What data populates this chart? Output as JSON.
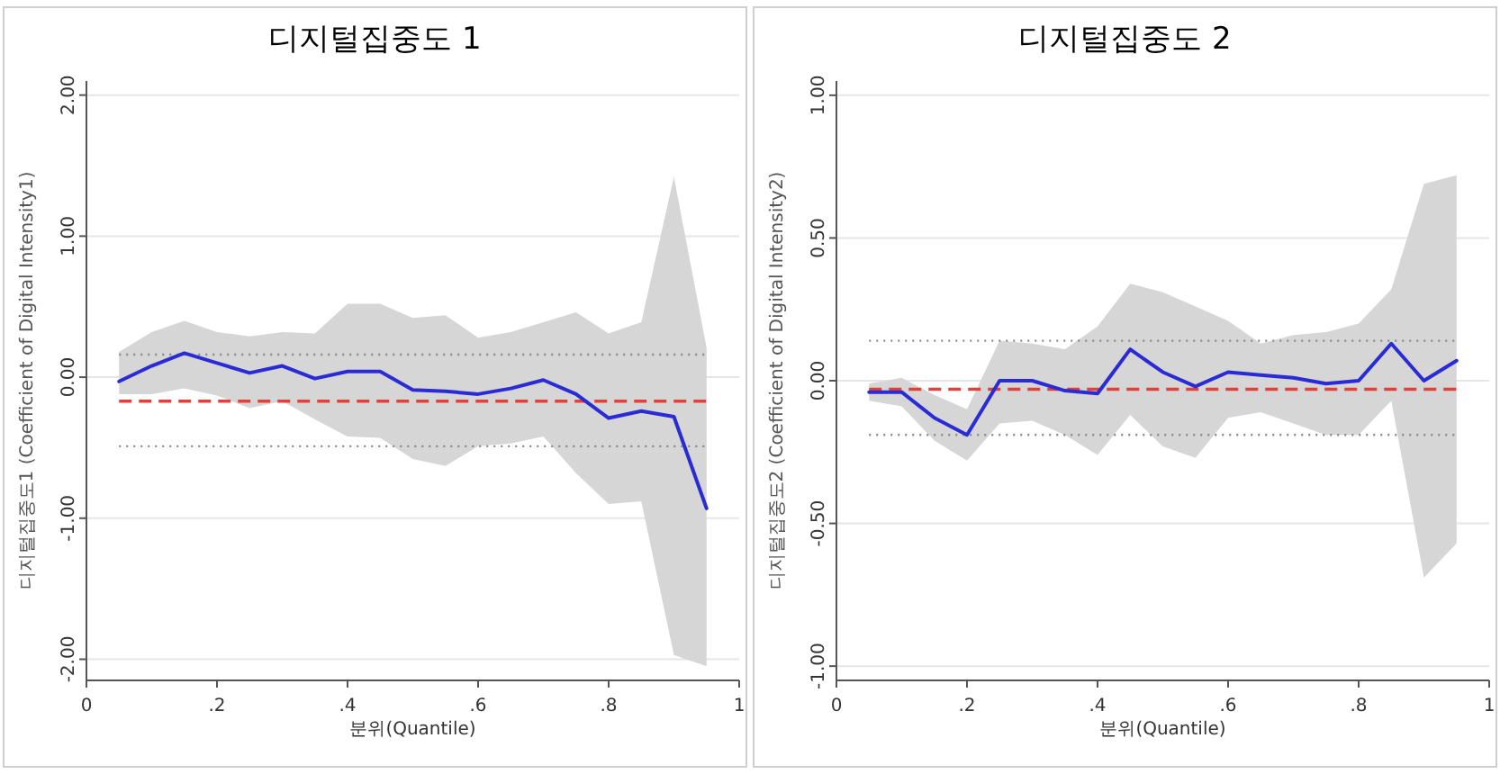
{
  "chart_data": [
    {
      "type": "line",
      "title": "디지털집중도 1",
      "xlabel": "분위(Quantile)",
      "ylabel": "디지털집중도1 (Coefficient of Digital Intensity1)",
      "x": [
        0.05,
        0.1,
        0.15,
        0.2,
        0.25,
        0.3,
        0.35,
        0.4,
        0.45,
        0.5,
        0.55,
        0.6,
        0.65,
        0.7,
        0.75,
        0.8,
        0.85,
        0.9,
        0.95
      ],
      "series": [
        {
          "color": "#2b2bd6",
          "values": [
            -0.03,
            0.08,
            0.17,
            0.1,
            0.03,
            0.08,
            -0.01,
            0.04,
            0.04,
            -0.09,
            -0.1,
            -0.12,
            -0.08,
            -0.02,
            -0.12,
            -0.29,
            -0.24,
            -0.28,
            -0.93
          ],
          "upper": [
            0.18,
            0.32,
            0.4,
            0.32,
            0.29,
            0.32,
            0.31,
            0.52,
            0.52,
            0.42,
            0.44,
            0.28,
            0.32,
            0.39,
            0.46,
            0.31,
            0.39,
            1.42,
            0.21
          ],
          "lower": [
            -0.12,
            -0.12,
            -0.08,
            -0.13,
            -0.22,
            -0.17,
            -0.3,
            -0.42,
            -0.43,
            -0.58,
            -0.63,
            -0.49,
            -0.47,
            -0.42,
            -0.68,
            -0.9,
            -0.88,
            -1.97,
            -2.05
          ]
        }
      ],
      "ref_lines": [
        {
          "axis": "y",
          "value": -0.17,
          "color": "#e0413a",
          "line_style": "dashed"
        },
        {
          "axis": "y",
          "value": 0.16,
          "color": "#888888",
          "line_style": "dotted"
        },
        {
          "axis": "y",
          "value": -0.49,
          "color": "#888888",
          "line_style": "dotted"
        }
      ],
      "xlim": [
        0,
        1
      ],
      "xticks": [
        {
          "value": 0,
          "label": "0"
        },
        {
          "value": 0.2,
          "label": ".2"
        },
        {
          "value": 0.4,
          "label": ".4"
        },
        {
          "value": 0.6,
          "label": ".6"
        },
        {
          "value": 0.8,
          "label": ".8"
        },
        {
          "value": 1,
          "label": "1"
        }
      ],
      "ylim": [
        -2.15,
        2.1
      ],
      "yticks": [
        {
          "value": 2,
          "label": "2.00"
        },
        {
          "value": 1,
          "label": "1.00"
        },
        {
          "value": 0,
          "label": "0.00"
        },
        {
          "value": -1,
          "label": "-1.00"
        },
        {
          "value": -2,
          "label": "-2.00"
        }
      ],
      "grid": "y"
    },
    {
      "type": "line",
      "title": "디지털집중도 2",
      "xlabel": "분위(Quantile)",
      "ylabel": "디지털집중도2 (Coefficient of Digital Intensity2)",
      "x": [
        0.05,
        0.1,
        0.15,
        0.2,
        0.25,
        0.3,
        0.35,
        0.4,
        0.45,
        0.5,
        0.55,
        0.6,
        0.65,
        0.7,
        0.75,
        0.8,
        0.85,
        0.9,
        0.95
      ],
      "series": [
        {
          "color": "#2b2bd6",
          "values": [
            -0.04,
            -0.04,
            -0.13,
            -0.19,
            0.0,
            0.0,
            -0.035,
            -0.045,
            0.11,
            0.03,
            -0.02,
            0.03,
            0.02,
            0.01,
            -0.01,
            0.0,
            0.13,
            0.0,
            0.07
          ],
          "upper": [
            -0.01,
            0.01,
            -0.05,
            -0.1,
            0.14,
            0.13,
            0.11,
            0.19,
            0.34,
            0.31,
            0.26,
            0.21,
            0.13,
            0.16,
            0.17,
            0.2,
            0.32,
            0.69,
            0.72
          ],
          "lower": [
            -0.07,
            -0.09,
            -0.21,
            -0.28,
            -0.15,
            -0.14,
            -0.19,
            -0.26,
            -0.12,
            -0.23,
            -0.27,
            -0.13,
            -0.11,
            -0.15,
            -0.19,
            -0.19,
            -0.07,
            -0.69,
            -0.57
          ]
        }
      ],
      "ref_lines": [
        {
          "axis": "y",
          "value": -0.03,
          "color": "#e0413a",
          "line_style": "dashed"
        },
        {
          "axis": "y",
          "value": 0.14,
          "color": "#888888",
          "line_style": "dotted"
        },
        {
          "axis": "y",
          "value": -0.19,
          "color": "#888888",
          "line_style": "dotted"
        }
      ],
      "xlim": [
        0,
        1
      ],
      "xticks": [
        {
          "value": 0,
          "label": "0"
        },
        {
          "value": 0.2,
          "label": ".2"
        },
        {
          "value": 0.4,
          "label": ".4"
        },
        {
          "value": 0.6,
          "label": ".6"
        },
        {
          "value": 0.8,
          "label": ".8"
        },
        {
          "value": 1,
          "label": "1"
        }
      ],
      "ylim": [
        -1.05,
        1.05
      ],
      "yticks": [
        {
          "value": 1,
          "label": "1.00"
        },
        {
          "value": 0.5,
          "label": "0.50"
        },
        {
          "value": 0,
          "label": "0.00"
        },
        {
          "value": -0.5,
          "label": "-0.50"
        },
        {
          "value": -1,
          "label": "-1.00"
        }
      ],
      "grid": "y"
    }
  ]
}
